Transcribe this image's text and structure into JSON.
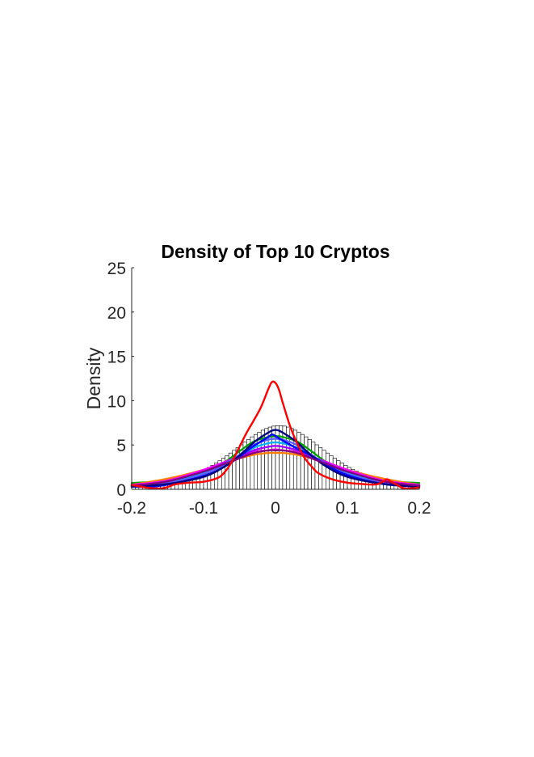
{
  "chart_data": {
    "type": "line",
    "title": "Density of Top 10 Cryptos",
    "xlabel": "",
    "ylabel": "Density",
    "xlim": [
      -0.2,
      0.2
    ],
    "ylim": [
      0,
      25
    ],
    "x_ticks": [
      "-0.2",
      "-0.1",
      "0",
      "0.1",
      "0.2"
    ],
    "x_tick_values": [
      -0.2,
      -0.1,
      0,
      0.1,
      0.2
    ],
    "y_ticks": [
      "0",
      "5",
      "10",
      "15",
      "20",
      "25"
    ],
    "y_tick_values": [
      0,
      5,
      10,
      15,
      20,
      25
    ],
    "grid": false,
    "histogram": {
      "bin_width": 0.005,
      "bins": [
        {
          "x": -0.2,
          "y": 0.3
        },
        {
          "x": -0.195,
          "y": 0.33
        },
        {
          "x": -0.19,
          "y": 0.37
        },
        {
          "x": -0.185,
          "y": 0.41
        },
        {
          "x": -0.18,
          "y": 0.46
        },
        {
          "x": -0.175,
          "y": 0.51
        },
        {
          "x": -0.17,
          "y": 0.56
        },
        {
          "x": -0.165,
          "y": 0.62
        },
        {
          "x": -0.16,
          "y": 0.69
        },
        {
          "x": -0.155,
          "y": 0.76
        },
        {
          "x": -0.15,
          "y": 0.84
        },
        {
          "x": -0.145,
          "y": 0.93
        },
        {
          "x": -0.14,
          "y": 1.03
        },
        {
          "x": -0.135,
          "y": 1.14
        },
        {
          "x": -0.13,
          "y": 1.26
        },
        {
          "x": -0.125,
          "y": 1.39
        },
        {
          "x": -0.12,
          "y": 1.53
        },
        {
          "x": -0.115,
          "y": 1.69
        },
        {
          "x": -0.11,
          "y": 1.86
        },
        {
          "x": -0.105,
          "y": 2.05
        },
        {
          "x": -0.1,
          "y": 2.25
        },
        {
          "x": -0.095,
          "y": 2.47
        },
        {
          "x": -0.09,
          "y": 2.71
        },
        {
          "x": -0.085,
          "y": 2.96
        },
        {
          "x": -0.08,
          "y": 3.22
        },
        {
          "x": -0.075,
          "y": 3.5
        },
        {
          "x": -0.07,
          "y": 3.79
        },
        {
          "x": -0.065,
          "y": 4.09
        },
        {
          "x": -0.06,
          "y": 4.4
        },
        {
          "x": -0.055,
          "y": 4.71
        },
        {
          "x": -0.05,
          "y": 5.02
        },
        {
          "x": -0.045,
          "y": 5.33
        },
        {
          "x": -0.04,
          "y": 5.63
        },
        {
          "x": -0.035,
          "y": 5.92
        },
        {
          "x": -0.03,
          "y": 6.19
        },
        {
          "x": -0.025,
          "y": 6.44
        },
        {
          "x": -0.02,
          "y": 6.67
        },
        {
          "x": -0.015,
          "y": 6.86
        },
        {
          "x": -0.01,
          "y": 7.02
        },
        {
          "x": -0.005,
          "y": 7.13
        },
        {
          "x": 0.0,
          "y": 7.18
        },
        {
          "x": 0.005,
          "y": 7.18
        },
        {
          "x": 0.01,
          "y": 7.13
        },
        {
          "x": 0.015,
          "y": 7.02
        },
        {
          "x": 0.02,
          "y": 6.86
        },
        {
          "x": 0.025,
          "y": 6.67
        },
        {
          "x": 0.03,
          "y": 6.44
        },
        {
          "x": 0.035,
          "y": 6.19
        },
        {
          "x": 0.04,
          "y": 5.92
        },
        {
          "x": 0.045,
          "y": 5.63
        },
        {
          "x": 0.05,
          "y": 5.33
        },
        {
          "x": 0.055,
          "y": 5.02
        },
        {
          "x": 0.06,
          "y": 4.71
        },
        {
          "x": 0.065,
          "y": 4.4
        },
        {
          "x": 0.07,
          "y": 4.09
        },
        {
          "x": 0.075,
          "y": 3.79
        },
        {
          "x": 0.08,
          "y": 3.5
        },
        {
          "x": 0.085,
          "y": 3.22
        },
        {
          "x": 0.09,
          "y": 2.96
        },
        {
          "x": 0.095,
          "y": 2.71
        },
        {
          "x": 0.1,
          "y": 2.47
        },
        {
          "x": 0.105,
          "y": 2.25
        },
        {
          "x": 0.11,
          "y": 2.05
        },
        {
          "x": 0.115,
          "y": 1.86
        },
        {
          "x": 0.12,
          "y": 1.69
        },
        {
          "x": 0.125,
          "y": 1.53
        },
        {
          "x": 0.13,
          "y": 1.39
        },
        {
          "x": 0.135,
          "y": 1.26
        },
        {
          "x": 0.14,
          "y": 1.14
        },
        {
          "x": 0.145,
          "y": 1.03
        },
        {
          "x": 0.15,
          "y": 0.93
        },
        {
          "x": 0.155,
          "y": 0.84
        },
        {
          "x": 0.16,
          "y": 0.76
        },
        {
          "x": 0.165,
          "y": 0.69
        },
        {
          "x": 0.17,
          "y": 0.62
        },
        {
          "x": 0.175,
          "y": 0.56
        },
        {
          "x": 0.18,
          "y": 0.51
        },
        {
          "x": 0.185,
          "y": 0.46
        },
        {
          "x": 0.19,
          "y": 0.41
        },
        {
          "x": 0.195,
          "y": 0.37
        }
      ]
    },
    "series": [
      {
        "color": "#ff0000",
        "x": [
          -0.2,
          -0.18,
          -0.16,
          -0.15,
          -0.14,
          -0.12,
          -0.1,
          -0.08,
          -0.07,
          -0.06,
          -0.05,
          -0.04,
          -0.03,
          -0.02,
          -0.01,
          -0.005,
          0,
          0.005,
          0.01,
          0.02,
          0.03,
          0.04,
          0.05,
          0.06,
          0.08,
          0.1,
          0.12,
          0.14,
          0.15,
          0.155,
          0.16,
          0.17,
          0.18,
          0.2
        ],
        "y": [
          0.5,
          0.2,
          0.1,
          0.25,
          0.55,
          0.75,
          0.85,
          1.3,
          2.0,
          3.2,
          4.8,
          6.4,
          7.8,
          9.3,
          11.3,
          12.1,
          12.0,
          11.2,
          9.8,
          7.2,
          5.2,
          3.6,
          2.6,
          1.8,
          1.1,
          0.75,
          0.6,
          0.55,
          0.9,
          1.15,
          0.9,
          0.45,
          0.1,
          0.2
        ]
      },
      {
        "color": "#00a000",
        "x": [
          -0.2,
          -0.15,
          -0.1,
          -0.07,
          -0.05,
          -0.03,
          -0.01,
          0,
          0.01,
          0.03,
          0.05,
          0.07,
          0.1,
          0.15,
          0.2
        ],
        "y": [
          0.7,
          1.0,
          1.9,
          3.1,
          4.3,
          5.4,
          5.9,
          6.0,
          5.9,
          5.4,
          4.3,
          3.1,
          1.9,
          1.0,
          0.7
        ]
      },
      {
        "color": "#ff8000",
        "x": [
          -0.2,
          -0.15,
          -0.1,
          -0.07,
          -0.05,
          -0.03,
          -0.01,
          0,
          0.01,
          0.03,
          0.05,
          0.07,
          0.1,
          0.15,
          0.2
        ],
        "y": [
          0.5,
          1.2,
          2.2,
          3.0,
          3.5,
          3.9,
          4.1,
          4.1,
          4.1,
          3.9,
          3.5,
          3.0,
          2.2,
          1.2,
          0.5
        ]
      },
      {
        "color": "#ff00ff",
        "x": [
          -0.2,
          -0.15,
          -0.1,
          -0.07,
          -0.05,
          -0.03,
          -0.01,
          0,
          0.01,
          0.03,
          0.05,
          0.07,
          0.1,
          0.15,
          0.2
        ],
        "y": [
          0.5,
          1.0,
          2.2,
          3.1,
          3.7,
          4.2,
          4.4,
          4.5,
          4.4,
          4.2,
          3.7,
          3.1,
          2.2,
          1.0,
          0.5
        ]
      },
      {
        "color": "#a000ff",
        "x": [
          -0.2,
          -0.15,
          -0.1,
          -0.07,
          -0.05,
          -0.03,
          -0.01,
          0,
          0.01,
          0.03,
          0.05,
          0.07,
          0.1,
          0.15,
          0.2
        ],
        "y": [
          0.4,
          0.9,
          2.0,
          3.0,
          3.7,
          4.4,
          4.8,
          4.9,
          4.8,
          4.4,
          3.7,
          3.0,
          2.0,
          0.9,
          0.4
        ]
      },
      {
        "color": "#00b0ff",
        "x": [
          -0.2,
          -0.15,
          -0.1,
          -0.07,
          -0.05,
          -0.03,
          -0.01,
          0,
          0.01,
          0.03,
          0.05,
          0.07,
          0.1,
          0.15,
          0.2
        ],
        "y": [
          0.4,
          0.8,
          1.8,
          2.9,
          3.8,
          4.7,
          5.2,
          5.3,
          5.2,
          4.7,
          3.8,
          2.9,
          1.8,
          0.8,
          0.4
        ]
      },
      {
        "color": "#6060ff",
        "x": [
          -0.2,
          -0.15,
          -0.1,
          -0.07,
          -0.05,
          -0.03,
          -0.01,
          0,
          0.01,
          0.03,
          0.05,
          0.07,
          0.1,
          0.15,
          0.2
        ],
        "y": [
          0.3,
          0.7,
          1.7,
          2.8,
          3.9,
          5.0,
          5.6,
          5.7,
          5.6,
          5.0,
          3.9,
          2.8,
          1.7,
          0.7,
          0.3
        ]
      },
      {
        "color": "#0000ff",
        "x": [
          -0.2,
          -0.16,
          -0.1,
          -0.07,
          -0.05,
          -0.03,
          -0.01,
          -0.005,
          0,
          0.01,
          0.03,
          0.05,
          0.07,
          0.1,
          0.15,
          0.2
        ],
        "y": [
          0.3,
          0.4,
          1.5,
          2.6,
          3.7,
          4.9,
          5.9,
          6.2,
          6.0,
          5.5,
          4.6,
          3.8,
          2.8,
          1.6,
          0.6,
          0.3
        ]
      },
      {
        "color": "#000080",
        "x": [
          -0.2,
          -0.15,
          -0.1,
          -0.07,
          -0.05,
          -0.03,
          -0.01,
          0,
          0.01,
          0.03,
          0.05,
          0.07,
          0.1,
          0.15,
          0.2
        ],
        "y": [
          0.3,
          0.6,
          1.4,
          2.6,
          3.8,
          5.3,
          6.4,
          6.7,
          6.4,
          5.3,
          3.8,
          2.6,
          1.4,
          0.6,
          0.3
        ]
      },
      {
        "color": "#800080",
        "x": [
          -0.2,
          -0.15,
          -0.1,
          -0.07,
          -0.05,
          -0.03,
          -0.01,
          0,
          0.01,
          0.03,
          0.05,
          0.07,
          0.1,
          0.15,
          0.2
        ],
        "y": [
          0.4,
          0.9,
          2.0,
          2.9,
          3.5,
          4.1,
          4.4,
          4.4,
          4.4,
          4.1,
          3.5,
          2.9,
          2.0,
          0.9,
          0.4
        ]
      }
    ]
  }
}
